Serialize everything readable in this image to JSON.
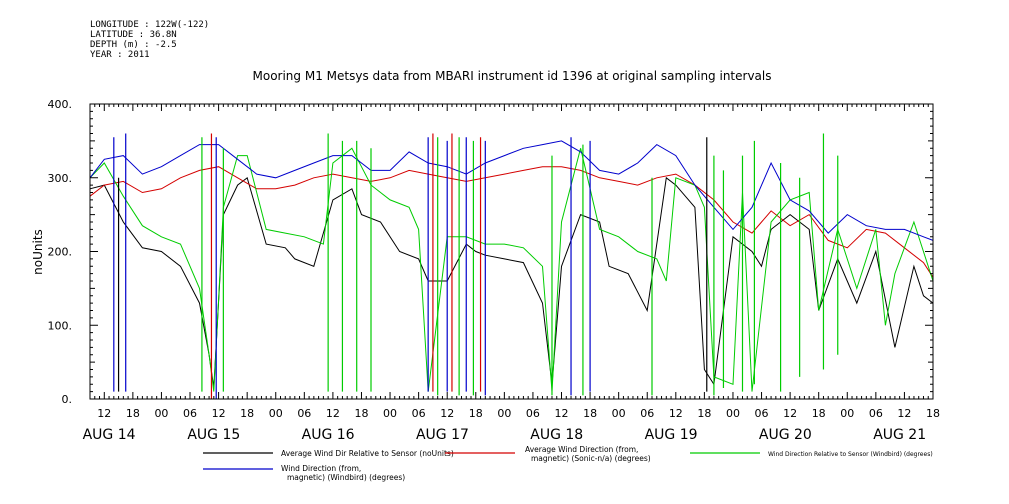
{
  "header": {
    "lines": [
      "LONGITUDE : 122W(-122)",
      "LATITUDE : 36.8N",
      "DEPTH (m) : -2.5",
      "YEAR : 2011"
    ]
  },
  "chart_data": {
    "type": "line",
    "title": "Mooring M1 Metsys data from MBARI instrument id 1396 at original sampling intervals",
    "ylabel": "noUnits",
    "xlabel": "",
    "ylim": [
      0,
      400
    ],
    "yticks": [
      "0.",
      "100.",
      "200.",
      "300.",
      "400."
    ],
    "xlim_hours": [
      -3,
      174
    ],
    "hour_ticks": [
      {
        "t": 0,
        "label": "12"
      },
      {
        "t": 6,
        "label": "18"
      },
      {
        "t": 12,
        "label": "00"
      },
      {
        "t": 18,
        "label": "06"
      },
      {
        "t": 24,
        "label": "12"
      },
      {
        "t": 30,
        "label": "18"
      },
      {
        "t": 36,
        "label": "00"
      },
      {
        "t": 42,
        "label": "06"
      },
      {
        "t": 48,
        "label": "12"
      },
      {
        "t": 54,
        "label": "18"
      },
      {
        "t": 60,
        "label": "00"
      },
      {
        "t": 66,
        "label": "06"
      },
      {
        "t": 72,
        "label": "12"
      },
      {
        "t": 78,
        "label": "18"
      },
      {
        "t": 84,
        "label": "00"
      },
      {
        "t": 90,
        "label": "06"
      },
      {
        "t": 96,
        "label": "12"
      },
      {
        "t": 102,
        "label": "18"
      },
      {
        "t": 108,
        "label": "00"
      },
      {
        "t": 114,
        "label": "06"
      },
      {
        "t": 120,
        "label": "12"
      },
      {
        "t": 126,
        "label": "18"
      },
      {
        "t": 132,
        "label": "00"
      },
      {
        "t": 138,
        "label": "06"
      },
      {
        "t": 144,
        "label": "12"
      },
      {
        "t": 150,
        "label": "18"
      },
      {
        "t": 156,
        "label": "00"
      },
      {
        "t": 162,
        "label": "06"
      },
      {
        "t": 168,
        "label": "12"
      },
      {
        "t": 174,
        "label": "18"
      },
      {
        "t": 180,
        "label": "00"
      },
      {
        "t": 186,
        "label": "06"
      }
    ],
    "day_labels": [
      {
        "t": 1,
        "label": "AUG 14"
      },
      {
        "t": 23,
        "label": "AUG 15"
      },
      {
        "t": 47,
        "label": "AUG 16"
      },
      {
        "t": 71,
        "label": "AUG 17"
      },
      {
        "t": 95,
        "label": "AUG 18"
      },
      {
        "t": 119,
        "label": "AUG 19"
      },
      {
        "t": 143,
        "label": "AUG 20"
      },
      {
        "t": 167,
        "label": "AUG 21"
      }
    ],
    "x_units": "hours from 12:00 AUG 14",
    "series": [
      {
        "name": "Average Wind Dir Relative to Sensor (noUnits)",
        "color": "#000000",
        "x": [
          -3,
          0,
          4,
          8,
          12,
          16,
          20,
          22,
          23,
          25,
          28,
          30,
          34,
          38,
          40,
          44,
          48,
          52,
          54,
          58,
          62,
          66,
          68,
          72,
          76,
          78,
          80,
          84,
          88,
          92,
          94,
          96,
          100,
          104,
          106,
          110,
          114,
          118,
          120,
          124,
          126,
          128,
          132,
          136,
          138,
          140,
          144,
          148,
          150,
          154,
          158,
          162,
          166,
          170,
          172,
          174
        ],
        "y": [
          285,
          290,
          240,
          205,
          200,
          180,
          130,
          60,
          15,
          250,
          290,
          300,
          210,
          205,
          190,
          180,
          270,
          285,
          250,
          240,
          200,
          190,
          160,
          160,
          210,
          200,
          195,
          190,
          185,
          130,
          20,
          180,
          250,
          240,
          180,
          170,
          120,
          300,
          290,
          260,
          40,
          20,
          220,
          200,
          180,
          230,
          250,
          230,
          120,
          190,
          130,
          200,
          70,
          180,
          140,
          130
        ]
      },
      {
        "name": "Average Wind Direction (from, magnetic) (Sonic-n/a) (degrees)",
        "color": "#d40000",
        "x": [
          -3,
          0,
          4,
          8,
          12,
          16,
          20,
          24,
          28,
          32,
          36,
          40,
          44,
          48,
          52,
          56,
          60,
          64,
          68,
          72,
          76,
          80,
          84,
          88,
          92,
          96,
          100,
          104,
          108,
          112,
          116,
          120,
          124,
          128,
          132,
          136,
          140,
          144,
          148,
          152,
          156,
          160,
          164,
          168,
          172,
          174
        ],
        "y": [
          275,
          290,
          295,
          280,
          285,
          300,
          310,
          315,
          300,
          285,
          285,
          290,
          300,
          305,
          300,
          295,
          300,
          310,
          305,
          300,
          295,
          300,
          305,
          310,
          315,
          315,
          310,
          300,
          295,
          290,
          300,
          305,
          290,
          270,
          240,
          225,
          255,
          235,
          250,
          215,
          205,
          230,
          225,
          205,
          185,
          165
        ]
      },
      {
        "name": "Wind Direction Relative to Sensor (Windbird) (degrees)",
        "color": "#00cc00",
        "x": [
          -3,
          0,
          4,
          8,
          12,
          16,
          20,
          22,
          23,
          25,
          28,
          30,
          34,
          38,
          42,
          46,
          48,
          52,
          56,
          60,
          64,
          66,
          68,
          72,
          76,
          80,
          84,
          88,
          92,
          94,
          96,
          100,
          104,
          108,
          112,
          116,
          118,
          120,
          124,
          126,
          128,
          132,
          134,
          136,
          140,
          144,
          148,
          150,
          154,
          158,
          162,
          164,
          166,
          170,
          174
        ],
        "y": [
          300,
          320,
          275,
          235,
          220,
          210,
          150,
          60,
          10,
          260,
          330,
          330,
          230,
          225,
          220,
          210,
          320,
          340,
          290,
          270,
          260,
          230,
          10,
          220,
          220,
          210,
          210,
          205,
          180,
          10,
          240,
          340,
          230,
          220,
          200,
          190,
          160,
          300,
          290,
          260,
          30,
          20,
          280,
          10,
          240,
          270,
          280,
          120,
          230,
          150,
          230,
          100,
          170,
          240,
          160
        ]
      },
      {
        "name": "Wind Direction (from, magnetic) (Windbird) (degrees)",
        "color": "#0000cc",
        "x": [
          -3,
          0,
          4,
          8,
          12,
          16,
          20,
          24,
          28,
          32,
          36,
          40,
          44,
          48,
          52,
          56,
          60,
          64,
          68,
          72,
          76,
          80,
          84,
          88,
          92,
          96,
          100,
          104,
          108,
          112,
          116,
          120,
          124,
          128,
          132,
          136,
          140,
          144,
          148,
          152,
          156,
          160,
          164,
          168,
          172,
          174
        ],
        "y": [
          300,
          325,
          330,
          305,
          315,
          330,
          345,
          345,
          325,
          305,
          300,
          310,
          320,
          330,
          330,
          310,
          310,
          335,
          320,
          315,
          305,
          320,
          330,
          340,
          345,
          350,
          335,
          310,
          305,
          320,
          345,
          330,
          290,
          260,
          230,
          260,
          320,
          270,
          255,
          225,
          250,
          235,
          230,
          230,
          220,
          215
        ]
      }
    ],
    "spikes": [
      {
        "x": 2,
        "lo": 10,
        "hi": 355,
        "color": "#0000cc"
      },
      {
        "x": 3,
        "lo": 10,
        "hi": 300,
        "color": "#000000"
      },
      {
        "x": 4.5,
        "lo": 10,
        "hi": 360,
        "color": "#0000cc"
      },
      {
        "x": 20.5,
        "lo": 10,
        "hi": 355,
        "color": "#00cc00"
      },
      {
        "x": 22.5,
        "lo": 0,
        "hi": 360,
        "color": "#d40000"
      },
      {
        "x": 23.5,
        "lo": 0,
        "hi": 355,
        "color": "#0000cc"
      },
      {
        "x": 25,
        "lo": 10,
        "hi": 340,
        "color": "#00cc00"
      },
      {
        "x": 47,
        "lo": 10,
        "hi": 360,
        "color": "#00cc00"
      },
      {
        "x": 50,
        "lo": 10,
        "hi": 350,
        "color": "#00cc00"
      },
      {
        "x": 53,
        "lo": 10,
        "hi": 350,
        "color": "#00cc00"
      },
      {
        "x": 56,
        "lo": 10,
        "hi": 340,
        "color": "#00cc00"
      },
      {
        "x": 68,
        "lo": 10,
        "hi": 355,
        "color": "#0000cc"
      },
      {
        "x": 69,
        "lo": 10,
        "hi": 360,
        "color": "#d40000"
      },
      {
        "x": 70,
        "lo": 5,
        "hi": 355,
        "color": "#00cc00"
      },
      {
        "x": 72,
        "lo": 10,
        "hi": 350,
        "color": "#0000cc"
      },
      {
        "x": 73,
        "lo": 10,
        "hi": 360,
        "color": "#d40000"
      },
      {
        "x": 74.5,
        "lo": 5,
        "hi": 355,
        "color": "#00cc00"
      },
      {
        "x": 76,
        "lo": 10,
        "hi": 355,
        "color": "#0000cc"
      },
      {
        "x": 77.5,
        "lo": 5,
        "hi": 350,
        "color": "#00cc00"
      },
      {
        "x": 79,
        "lo": 10,
        "hi": 355,
        "color": "#d40000"
      },
      {
        "x": 80,
        "lo": 5,
        "hi": 350,
        "color": "#0000cc"
      },
      {
        "x": 94,
        "lo": 5,
        "hi": 330,
        "color": "#00cc00"
      },
      {
        "x": 98,
        "lo": 5,
        "hi": 355,
        "color": "#0000cc"
      },
      {
        "x": 100.5,
        "lo": 5,
        "hi": 345,
        "color": "#00cc00"
      },
      {
        "x": 102,
        "lo": 10,
        "hi": 350,
        "color": "#0000cc"
      },
      {
        "x": 115,
        "lo": 5,
        "hi": 300,
        "color": "#00cc00"
      },
      {
        "x": 126.5,
        "lo": 10,
        "hi": 355,
        "color": "#000000"
      },
      {
        "x": 128,
        "lo": 5,
        "hi": 330,
        "color": "#00cc00"
      },
      {
        "x": 130,
        "lo": 15,
        "hi": 310,
        "color": "#00cc00"
      },
      {
        "x": 134,
        "lo": 10,
        "hi": 330,
        "color": "#00cc00"
      },
      {
        "x": 136.5,
        "lo": 20,
        "hi": 350,
        "color": "#00cc00"
      },
      {
        "x": 142,
        "lo": 10,
        "hi": 320,
        "color": "#00cc00"
      },
      {
        "x": 146,
        "lo": 30,
        "hi": 300,
        "color": "#00cc00"
      },
      {
        "x": 151,
        "lo": 40,
        "hi": 360,
        "color": "#00cc00"
      },
      {
        "x": 154,
        "lo": 60,
        "hi": 330,
        "color": "#00cc00"
      }
    ]
  },
  "legend": [
    {
      "label": "Average Wind Dir Relative to Sensor (noUnits)",
      "color": "#000000"
    },
    {
      "label": "Average Wind Direction (from,\nmagnetic) (Sonic-n/a) (degrees)",
      "color": "#d40000"
    },
    {
      "label": "Wind Direction Relative to Sensor (Windbird) (degrees)",
      "color": "#00cc00"
    },
    {
      "label": "Wind Direction (from,\nmagnetic) (Windbird) (degrees)",
      "color": "#0000cc"
    }
  ]
}
